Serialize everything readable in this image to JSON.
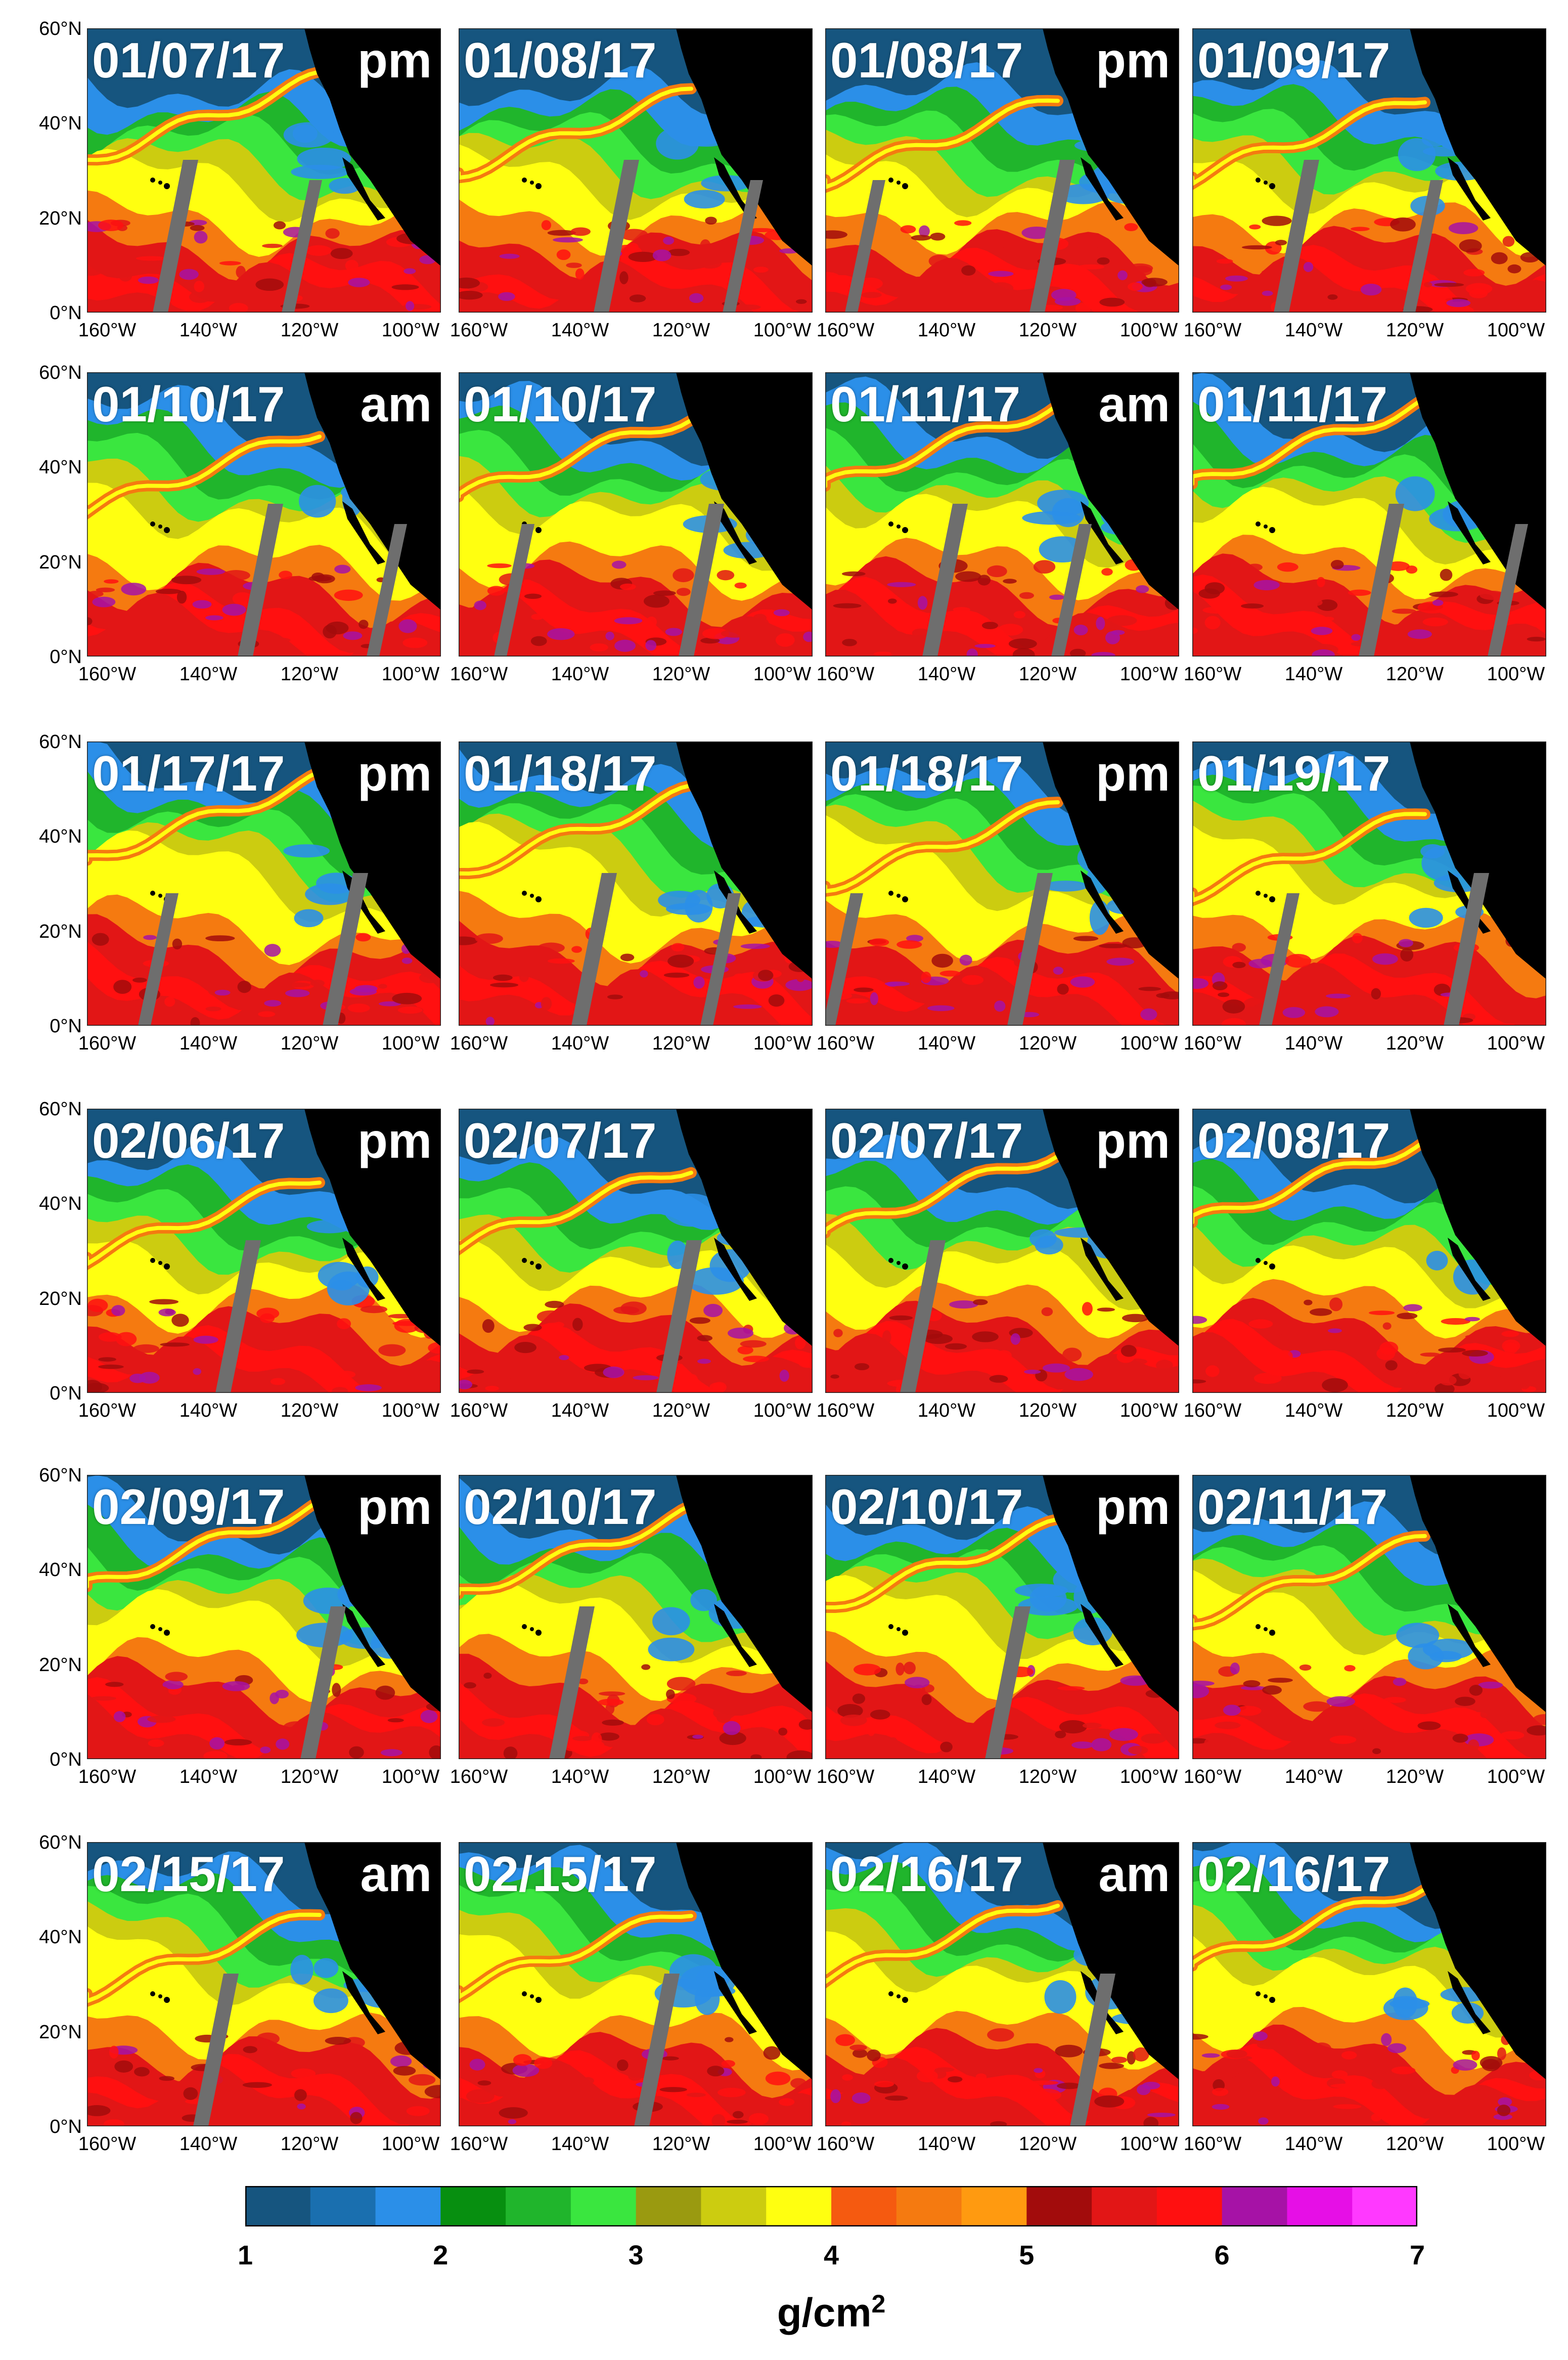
{
  "figure": {
    "panels": [
      {
        "date": "01/07/17",
        "ampm": "pm"
      },
      {
        "date": "01/08/17",
        "ampm": ""
      },
      {
        "date": "01/08/17",
        "ampm": "pm"
      },
      {
        "date": "01/09/17",
        "ampm": ""
      },
      {
        "date": "01/10/17",
        "ampm": "am"
      },
      {
        "date": "01/10/17",
        "ampm": ""
      },
      {
        "date": "01/11/17",
        "ampm": "am"
      },
      {
        "date": "01/11/17",
        "ampm": ""
      },
      {
        "date": "01/17/17",
        "ampm": "pm"
      },
      {
        "date": "01/18/17",
        "ampm": ""
      },
      {
        "date": "01/18/17",
        "ampm": "pm"
      },
      {
        "date": "01/19/17",
        "ampm": ""
      },
      {
        "date": "02/06/17",
        "ampm": "pm"
      },
      {
        "date": "02/07/17",
        "ampm": ""
      },
      {
        "date": "02/07/17",
        "ampm": "pm"
      },
      {
        "date": "02/08/17",
        "ampm": ""
      },
      {
        "date": "02/09/17",
        "ampm": "pm"
      },
      {
        "date": "02/10/17",
        "ampm": ""
      },
      {
        "date": "02/10/17",
        "ampm": "pm"
      },
      {
        "date": "02/11/17",
        "ampm": ""
      },
      {
        "date": "02/15/17",
        "ampm": "am"
      },
      {
        "date": "02/15/17",
        "ampm": ""
      },
      {
        "date": "02/16/17",
        "ampm": "am"
      },
      {
        "date": "02/16/17",
        "ampm": ""
      }
    ],
    "lat_ticks": [
      "60°N",
      "40°N",
      "20°N",
      "0°N"
    ],
    "lon_ticks": [
      "160°W",
      "140°W",
      "120°W",
      "100°W"
    ]
  },
  "colorbar": {
    "colors": [
      "#16557f",
      "#1a6faf",
      "#2b8fe8",
      "#078f10",
      "#20b52c",
      "#3ae63f",
      "#9a9a10",
      "#cccc10",
      "#ffff10",
      "#f55a10",
      "#f57a10",
      "#ff9a10",
      "#a20c0c",
      "#e21616",
      "#ff1010",
      "#a612a6",
      "#e60fe6",
      "#ff39ff"
    ],
    "ticks": [
      "1",
      "2",
      "3",
      "4",
      "5",
      "6",
      "7"
    ],
    "units_base": "g/cm",
    "units_exp": "2"
  },
  "legend_colors": {
    "ocean_dry": "#16557f",
    "land": "#000000",
    "no_data_swath": "#6e6e6e"
  }
}
